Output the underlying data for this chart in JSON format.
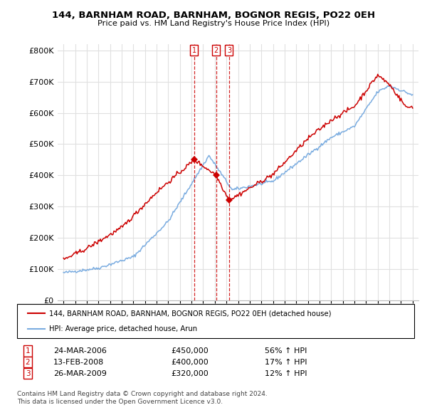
{
  "title": "144, BARNHAM ROAD, BARNHAM, BOGNOR REGIS, PO22 0EH",
  "subtitle": "Price paid vs. HM Land Registry's House Price Index (HPI)",
  "legend_line1": "144, BARNHAM ROAD, BARNHAM, BOGNOR REGIS, PO22 0EH (detached house)",
  "legend_line2": "HPI: Average price, detached house, Arun",
  "footer1": "Contains HM Land Registry data © Crown copyright and database right 2024.",
  "footer2": "This data is licensed under the Open Government Licence v3.0.",
  "transactions": [
    {
      "num": 1,
      "date": "24-MAR-2006",
      "date_float": 2006.23,
      "price": 450000,
      "pct": "56%",
      "dir": "↑"
    },
    {
      "num": 2,
      "date": "13-FEB-2008",
      "date_float": 2008.12,
      "price": 400000,
      "pct": "17%",
      "dir": "↑"
    },
    {
      "num": 3,
      "date": "26-MAR-2009",
      "date_float": 2009.23,
      "price": 320000,
      "pct": "12%",
      "dir": "↑"
    }
  ],
  "red_line_color": "#cc0000",
  "blue_line_color": "#7aace0",
  "dashed_line_color": "#cc0000",
  "marker_color": "#cc0000",
  "ylim": [
    0,
    820000
  ],
  "yticks": [
    0,
    100000,
    200000,
    300000,
    400000,
    500000,
    600000,
    700000,
    800000
  ],
  "xlim_start": 1994.5,
  "xlim_end": 2025.5,
  "background_color": "#ffffff",
  "grid_color": "#e0e0e0"
}
